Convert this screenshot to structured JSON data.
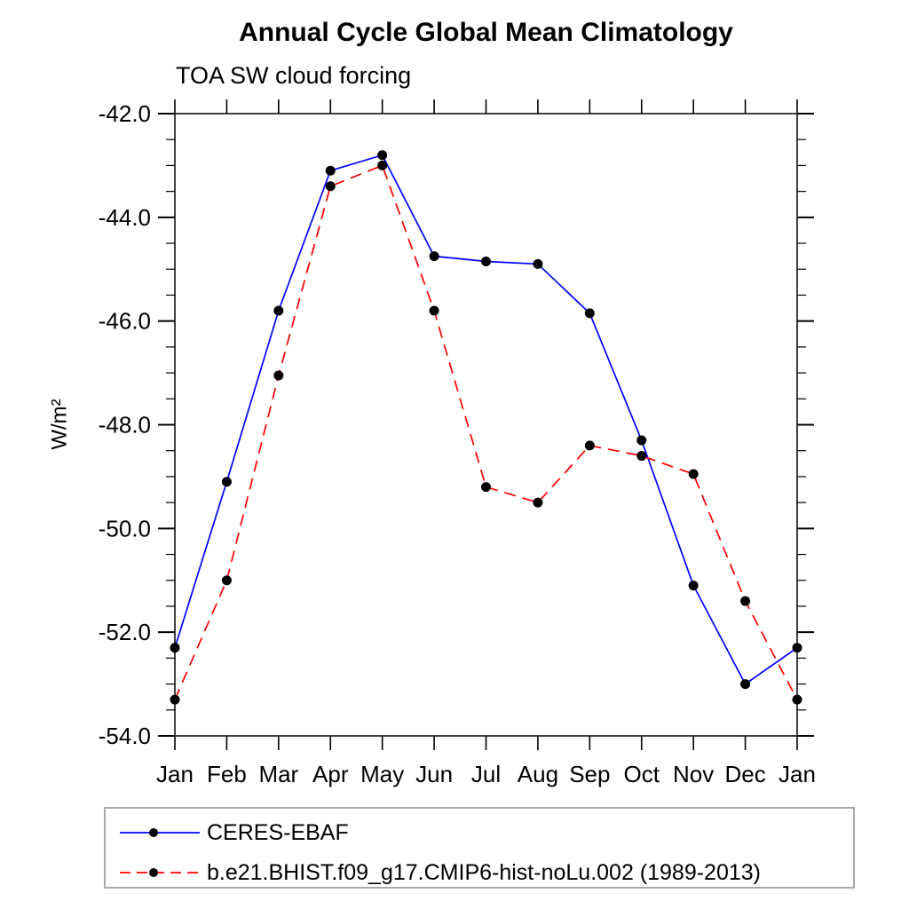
{
  "chart_data": {
    "type": "line",
    "title": "Annual Cycle Global Mean Climatology",
    "subtitle": "TOA SW cloud forcing",
    "ylabel": "W/m²",
    "xlabel": "",
    "categories": [
      "Jan",
      "Feb",
      "Mar",
      "Apr",
      "May",
      "Jun",
      "Jul",
      "Aug",
      "Sep",
      "Oct",
      "Nov",
      "Dec",
      "Jan"
    ],
    "ylim": [
      -54.0,
      -42.0
    ],
    "y_tick_labels": [
      "-42.0",
      "-44.0",
      "-46.0",
      "-48.0",
      "-50.0",
      "-52.0",
      "-54.0"
    ],
    "y_major_ticks": [
      -42.0,
      -44.0,
      -46.0,
      -48.0,
      -50.0,
      -52.0,
      -54.0
    ],
    "y_minor_step": 0.5,
    "grid": false,
    "legend_position": "bottom",
    "frame_color": "#000000",
    "marker_color": "#000000",
    "series": [
      {
        "name": "CERES-EBAF",
        "color": "#0000ff",
        "style": "solid",
        "marker": "circle",
        "values": [
          -52.3,
          -49.1,
          -45.8,
          -43.1,
          -42.8,
          -44.75,
          -44.85,
          -44.9,
          -45.85,
          -48.3,
          -51.1,
          -53.0,
          -52.3
        ]
      },
      {
        "name": "b.e21.BHIST.f09_g17.CMIP6-hist-noLu.002 (1989-2013)",
        "color": "#ff0000",
        "style": "dashed",
        "marker": "circle",
        "values": [
          -53.3,
          -51.0,
          -47.05,
          -43.4,
          -43.0,
          -45.8,
          -49.2,
          -49.5,
          -48.4,
          -48.6,
          -48.95,
          -51.4,
          -53.3
        ]
      }
    ]
  }
}
